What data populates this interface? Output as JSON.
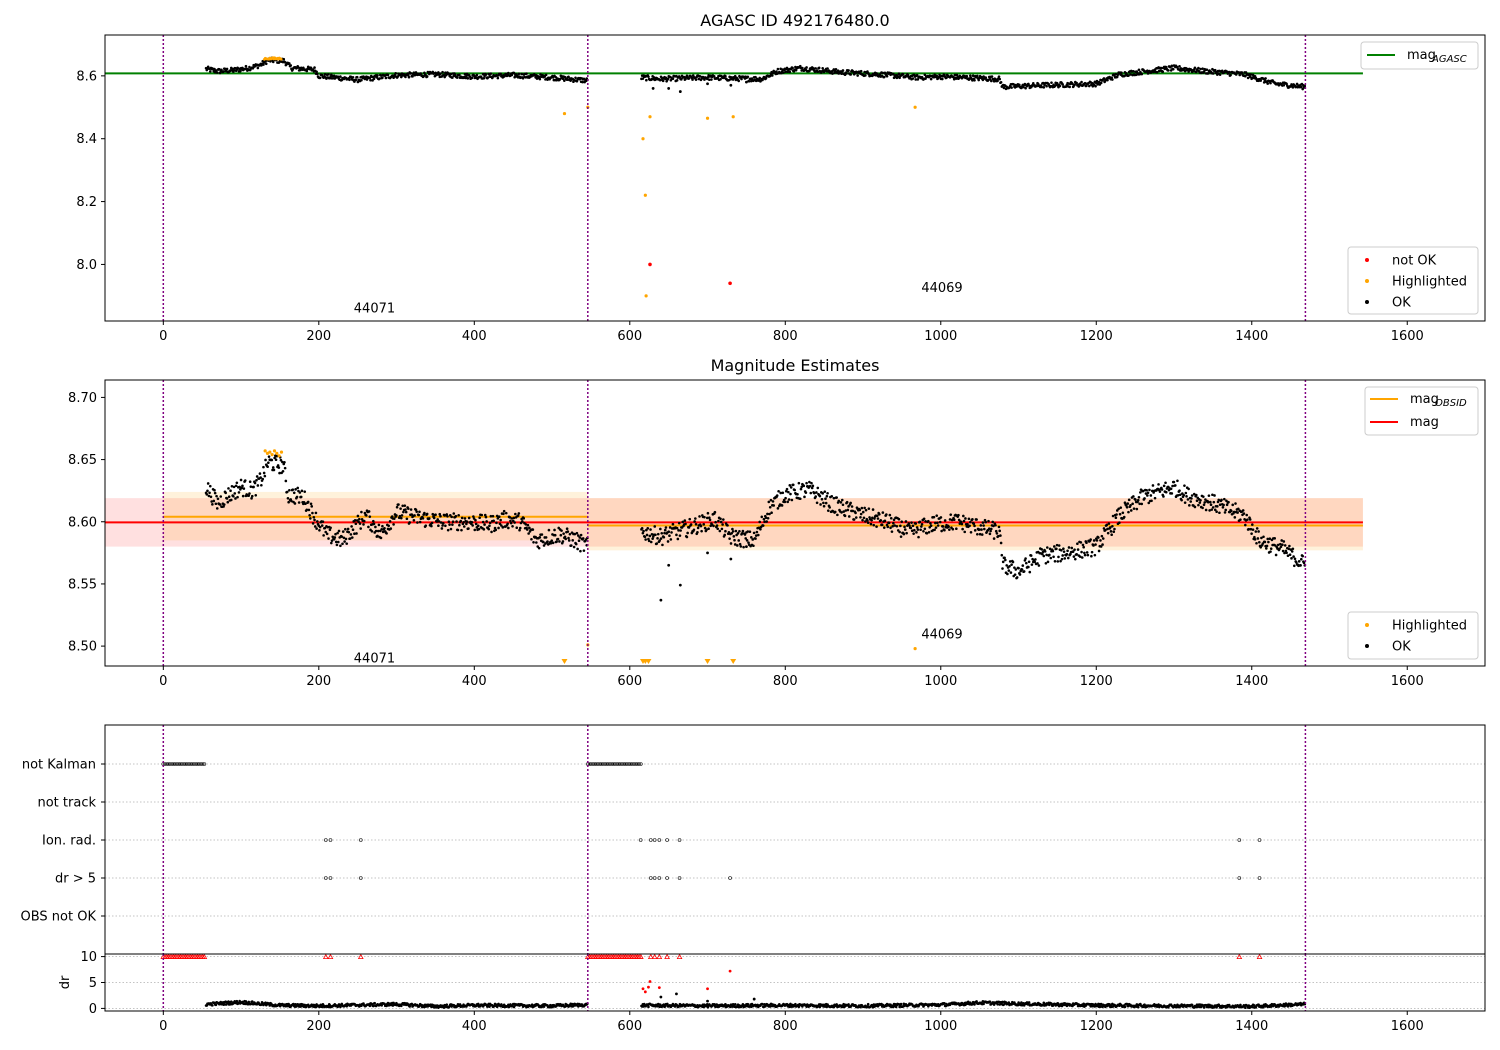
{
  "chart_data": [
    {
      "id": "top",
      "type": "scatter",
      "title": "AGASC ID 492176480.0",
      "xlim": [
        -75,
        1700
      ],
      "ylim": [
        7.82,
        8.73
      ],
      "xticks": [
        0,
        200,
        400,
        600,
        800,
        1000,
        1200,
        1400,
        1600
      ],
      "xticklabels": [
        "0",
        "200",
        "400",
        "600",
        "800",
        "1000",
        "1200",
        "1400",
        "1600"
      ],
      "yticks": [
        8.0,
        8.2,
        8.4,
        8.6
      ],
      "yticklabels": [
        "8.0",
        "8.2",
        "8.4",
        "8.6"
      ],
      "obs_boundaries": [
        0,
        546,
        1469
      ],
      "obs_labels": [
        {
          "text": "44071",
          "x": 245,
          "y": 7.86
        },
        {
          "text": "44069",
          "x": 975,
          "y": 7.925
        }
      ],
      "hlines": [
        {
          "name": "mag_AGASC",
          "y": 8.608,
          "x0": -75,
          "x1": 1543,
          "color": "#008000"
        }
      ],
      "highlighted": {
        "x": [
          516,
          546,
          617,
          620,
          621,
          626,
          700,
          733,
          967
        ],
        "y": [
          8.48,
          8.5,
          8.4,
          8.22,
          7.9,
          8.47,
          8.465,
          8.47,
          8.5
        ]
      },
      "not_ok": {
        "x": [
          626,
          729
        ],
        "y": [
          8.0,
          7.94
        ]
      },
      "ok_segments": [
        [
          [
            55,
            8.622
          ],
          [
            70,
            8.615
          ],
          [
            90,
            8.618
          ],
          [
            110,
            8.625
          ],
          [
            125,
            8.635
          ],
          [
            135,
            8.65
          ],
          [
            155,
            8.648
          ],
          [
            165,
            8.625
          ],
          [
            195,
            8.62
          ],
          [
            200,
            8.6
          ],
          [
            250,
            8.588
          ],
          [
            300,
            8.602
          ],
          [
            350,
            8.605
          ],
          [
            400,
            8.598
          ],
          [
            450,
            8.602
          ],
          [
            500,
            8.595
          ],
          [
            546,
            8.585
          ]
        ],
        [
          [
            615,
            8.595
          ],
          [
            640,
            8.59
          ],
          [
            700,
            8.595
          ],
          [
            730,
            8.592
          ],
          [
            770,
            8.59
          ],
          [
            790,
            8.615
          ],
          [
            820,
            8.625
          ],
          [
            870,
            8.612
          ],
          [
            920,
            8.605
          ],
          [
            970,
            8.595
          ],
          [
            1000,
            8.598
          ],
          [
            1075,
            8.59
          ],
          [
            1080,
            8.565
          ],
          [
            1130,
            8.57
          ],
          [
            1200,
            8.575
          ],
          [
            1230,
            8.605
          ],
          [
            1300,
            8.625
          ],
          [
            1340,
            8.615
          ],
          [
            1390,
            8.605
          ],
          [
            1430,
            8.575
          ],
          [
            1469,
            8.565
          ]
        ]
      ],
      "ok_extra": {
        "x": [
          630,
          650,
          665,
          700,
          730,
          750
        ],
        "y": [
          8.56,
          8.56,
          8.55,
          8.575,
          8.57,
          8.58
        ]
      },
      "legend_top": [
        {
          "name": "mag",
          "sub": "AGASC",
          "color": "#008000"
        }
      ],
      "legend_bottom": [
        {
          "name": "not OK",
          "color": "#ff0000"
        },
        {
          "name": "Highlighted",
          "color": "#ffa500"
        },
        {
          "name": "OK",
          "color": "#000000"
        }
      ]
    },
    {
      "id": "mid",
      "type": "scatter",
      "title": "Magnitude Estimates",
      "xlim": [
        -75,
        1700
      ],
      "ylim": [
        8.484,
        8.714
      ],
      "xticks": [
        0,
        200,
        400,
        600,
        800,
        1000,
        1200,
        1400,
        1600
      ],
      "xticklabels": [
        "0",
        "200",
        "400",
        "600",
        "800",
        "1000",
        "1200",
        "1400",
        "1600"
      ],
      "yticks": [
        8.5,
        8.55,
        8.6,
        8.65,
        8.7
      ],
      "yticklabels": [
        "8.50",
        "8.55",
        "8.60",
        "8.65",
        "8.70"
      ],
      "obs_boundaries": [
        0,
        546,
        1469
      ],
      "obs_labels": [
        {
          "text": "44071",
          "x": 245,
          "y": 8.49
        },
        {
          "text": "44069",
          "x": 975,
          "y": 8.5095
        }
      ],
      "bands": [
        {
          "x0": -75,
          "x1": 1543,
          "y0": 8.58,
          "y1": 8.619,
          "color": "#ff0000",
          "opacity": 0.12
        },
        {
          "x0": 0,
          "x1": 546,
          "y0": 8.585,
          "y1": 8.624,
          "color": "#ffa500",
          "opacity": 0.14
        },
        {
          "x0": 546,
          "x1": 1543,
          "y0": 8.577,
          "y1": 8.619,
          "color": "#ffa500",
          "opacity": 0.14
        }
      ],
      "lines": [
        {
          "name": "mag_OBSID",
          "x0": 0,
          "x1": 546,
          "y": 8.604,
          "color": "#ffa500"
        },
        {
          "name": "mag_OBSID",
          "x0": 546,
          "x1": 1543,
          "y": 8.597,
          "color": "#ffa500"
        },
        {
          "name": "mag",
          "x0": -75,
          "x1": 1543,
          "y": 8.5995,
          "color": "#ff0000"
        }
      ],
      "highlighted": {
        "x": [
          131,
          134,
          137,
          140,
          143,
          146,
          149,
          152,
          546,
          967
        ],
        "y": [
          8.657,
          8.655,
          8.656,
          8.654,
          8.657,
          8.655,
          8.653,
          8.656,
          8.501,
          8.498
        ]
      },
      "highlighted_below": {
        "x": [
          516,
          617,
          620,
          624,
          700,
          733
        ]
      },
      "ok_segments": [
        [
          [
            55,
            8.628
          ],
          [
            70,
            8.615
          ],
          [
            85,
            8.622
          ],
          [
            100,
            8.628
          ],
          [
            115,
            8.625
          ],
          [
            125,
            8.633
          ],
          [
            135,
            8.648
          ],
          [
            155,
            8.645
          ],
          [
            160,
            8.622
          ],
          [
            180,
            8.62
          ],
          [
            195,
            8.603
          ],
          [
            210,
            8.59
          ],
          [
            230,
            8.585
          ],
          [
            260,
            8.605
          ],
          [
            280,
            8.59
          ],
          [
            300,
            8.608
          ],
          [
            330,
            8.603
          ],
          [
            360,
            8.6
          ],
          [
            390,
            8.6
          ],
          [
            420,
            8.598
          ],
          [
            440,
            8.602
          ],
          [
            460,
            8.6
          ],
          [
            480,
            8.585
          ],
          [
            510,
            8.59
          ],
          [
            530,
            8.585
          ],
          [
            546,
            8.58
          ]
        ],
        [
          [
            615,
            8.592
          ],
          [
            640,
            8.588
          ],
          [
            660,
            8.592
          ],
          [
            690,
            8.598
          ],
          [
            710,
            8.602
          ],
          [
            730,
            8.588
          ],
          [
            760,
            8.585
          ],
          [
            780,
            8.612
          ],
          [
            800,
            8.622
          ],
          [
            830,
            8.626
          ],
          [
            860,
            8.614
          ],
          [
            900,
            8.605
          ],
          [
            930,
            8.6
          ],
          [
            960,
            8.592
          ],
          [
            990,
            8.598
          ],
          [
            1020,
            8.6
          ],
          [
            1075,
            8.592
          ],
          [
            1080,
            8.565
          ],
          [
            1100,
            8.56
          ],
          [
            1130,
            8.573
          ],
          [
            1160,
            8.575
          ],
          [
            1200,
            8.58
          ],
          [
            1230,
            8.605
          ],
          [
            1260,
            8.62
          ],
          [
            1300,
            8.628
          ],
          [
            1320,
            8.62
          ],
          [
            1350,
            8.615
          ],
          [
            1390,
            8.605
          ],
          [
            1410,
            8.585
          ],
          [
            1440,
            8.578
          ],
          [
            1469,
            8.565
          ]
        ]
      ],
      "ok_extra": {
        "x": [
          640,
          650,
          665,
          700,
          730,
          750
        ],
        "y": [
          8.537,
          8.565,
          8.549,
          8.575,
          8.57,
          8.58
        ]
      },
      "legend_top": [
        {
          "name": "mag",
          "sub": "OBSID",
          "color": "#ffa500"
        },
        {
          "name": "mag",
          "sub": "",
          "color": "#ff0000"
        }
      ],
      "legend_bottom": [
        {
          "name": "Highlighted",
          "color": "#ffa500"
        },
        {
          "name": "OK",
          "color": "#000000"
        }
      ]
    },
    {
      "id": "flags",
      "type": "scatter",
      "xlim": [
        -75,
        1700
      ],
      "categories": [
        "not Kalman",
        "not track",
        "Ion. rad.",
        "dr > 5",
        "OBS not OK"
      ],
      "obs_boundaries": [
        0,
        546,
        1469
      ],
      "flag_points": {
        "not Kalman": [
          [
            0,
            55
          ],
          [
            546,
            615
          ]
        ],
        "not track": [],
        "Ion. rad.": [
          209,
          215,
          254,
          614,
          627,
          632,
          638,
          648,
          664,
          1384,
          1410
        ],
        "dr > 5": [
          209,
          215,
          254,
          627,
          632,
          638,
          648,
          664,
          729,
          1384,
          1410
        ],
        "OBS not OK": []
      }
    },
    {
      "id": "dr",
      "type": "scatter",
      "xlim": [
        -75,
        1700
      ],
      "ylim": [
        -0.5,
        10.5
      ],
      "ylabel": "dr",
      "xticks": [
        0,
        200,
        400,
        600,
        800,
        1000,
        1200,
        1400,
        1600
      ],
      "xticklabels": [
        "0",
        "200",
        "400",
        "600",
        "800",
        "1000",
        "1200",
        "1400",
        "1600"
      ],
      "yticks": [
        0,
        5,
        10
      ],
      "yticklabels": [
        "0",
        "5",
        "10"
      ],
      "obs_boundaries": [
        0,
        546,
        1469
      ],
      "clipped": {
        "x_ranges": [
          [
            0,
            55
          ],
          [
            546,
            615
          ]
        ],
        "x_points": [
          209,
          215,
          254,
          627,
          632,
          638,
          648,
          664,
          1384,
          1410
        ],
        "y": 10
      },
      "red_points": {
        "x": [
          617,
          620,
          624,
          626,
          638,
          700,
          729
        ],
        "y": [
          3.8,
          3.2,
          4.1,
          5.2,
          4.0,
          3.8,
          7.2
        ]
      },
      "ok_segments": [
        [
          [
            55,
            0.8
          ],
          [
            100,
            1.2
          ],
          [
            150,
            0.6
          ],
          [
            200,
            0.5
          ],
          [
            300,
            0.8
          ],
          [
            350,
            0.4
          ],
          [
            400,
            0.6
          ],
          [
            500,
            0.5
          ],
          [
            546,
            0.7
          ]
        ],
        [
          [
            615,
            0.6
          ],
          [
            700,
            0.5
          ],
          [
            800,
            0.6
          ],
          [
            900,
            0.5
          ],
          [
            1000,
            0.7
          ],
          [
            1050,
            1.1
          ],
          [
            1100,
            0.9
          ],
          [
            1200,
            0.6
          ],
          [
            1300,
            0.5
          ],
          [
            1400,
            0.4
          ],
          [
            1469,
            0.8
          ]
        ]
      ],
      "ok_extra": {
        "x": [
          640,
          660,
          700,
          760
        ],
        "y": [
          2.2,
          2.8,
          1.4,
          1.8
        ]
      }
    }
  ]
}
